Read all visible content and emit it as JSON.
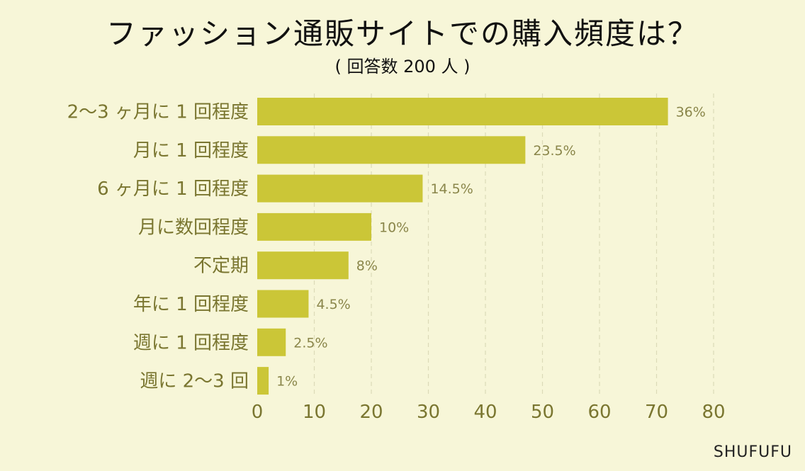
{
  "title": "ファッション通販サイトでの購入頻度は？",
  "subtitle": "( 回答数 200 人 )",
  "brand": "SHUFUFU",
  "colors": {
    "background": "#f7f6d8",
    "bar": "#cbc637",
    "label": "#7a7630",
    "grid": "#dcdab8"
  },
  "chart_data": {
    "type": "bar",
    "orientation": "horizontal",
    "title": "ファッション通販サイトでの購入頻度は？",
    "subtitle": "( 回答数 200 人 )",
    "categories": [
      "2〜3 ヶ月に 1 回程度",
      "月に 1 回程度",
      "6 ヶ月に 1 回程度",
      "月に数回程度",
      "不定期",
      "年に 1 回程度",
      "週に 1 回程度",
      "週に 2〜3 回"
    ],
    "values": [
      72,
      47,
      29,
      20,
      16,
      9,
      5,
      2
    ],
    "value_labels": [
      "36%",
      "23.5%",
      "14.5%",
      "10%",
      "8%",
      "4.5%",
      "2.5%",
      "1%"
    ],
    "xlim": [
      0,
      80
    ],
    "xticks": [
      "0",
      "10",
      "20",
      "30",
      "40",
      "50",
      "60",
      "70",
      "80"
    ],
    "grid": "vertical dashed",
    "legend": "none"
  }
}
